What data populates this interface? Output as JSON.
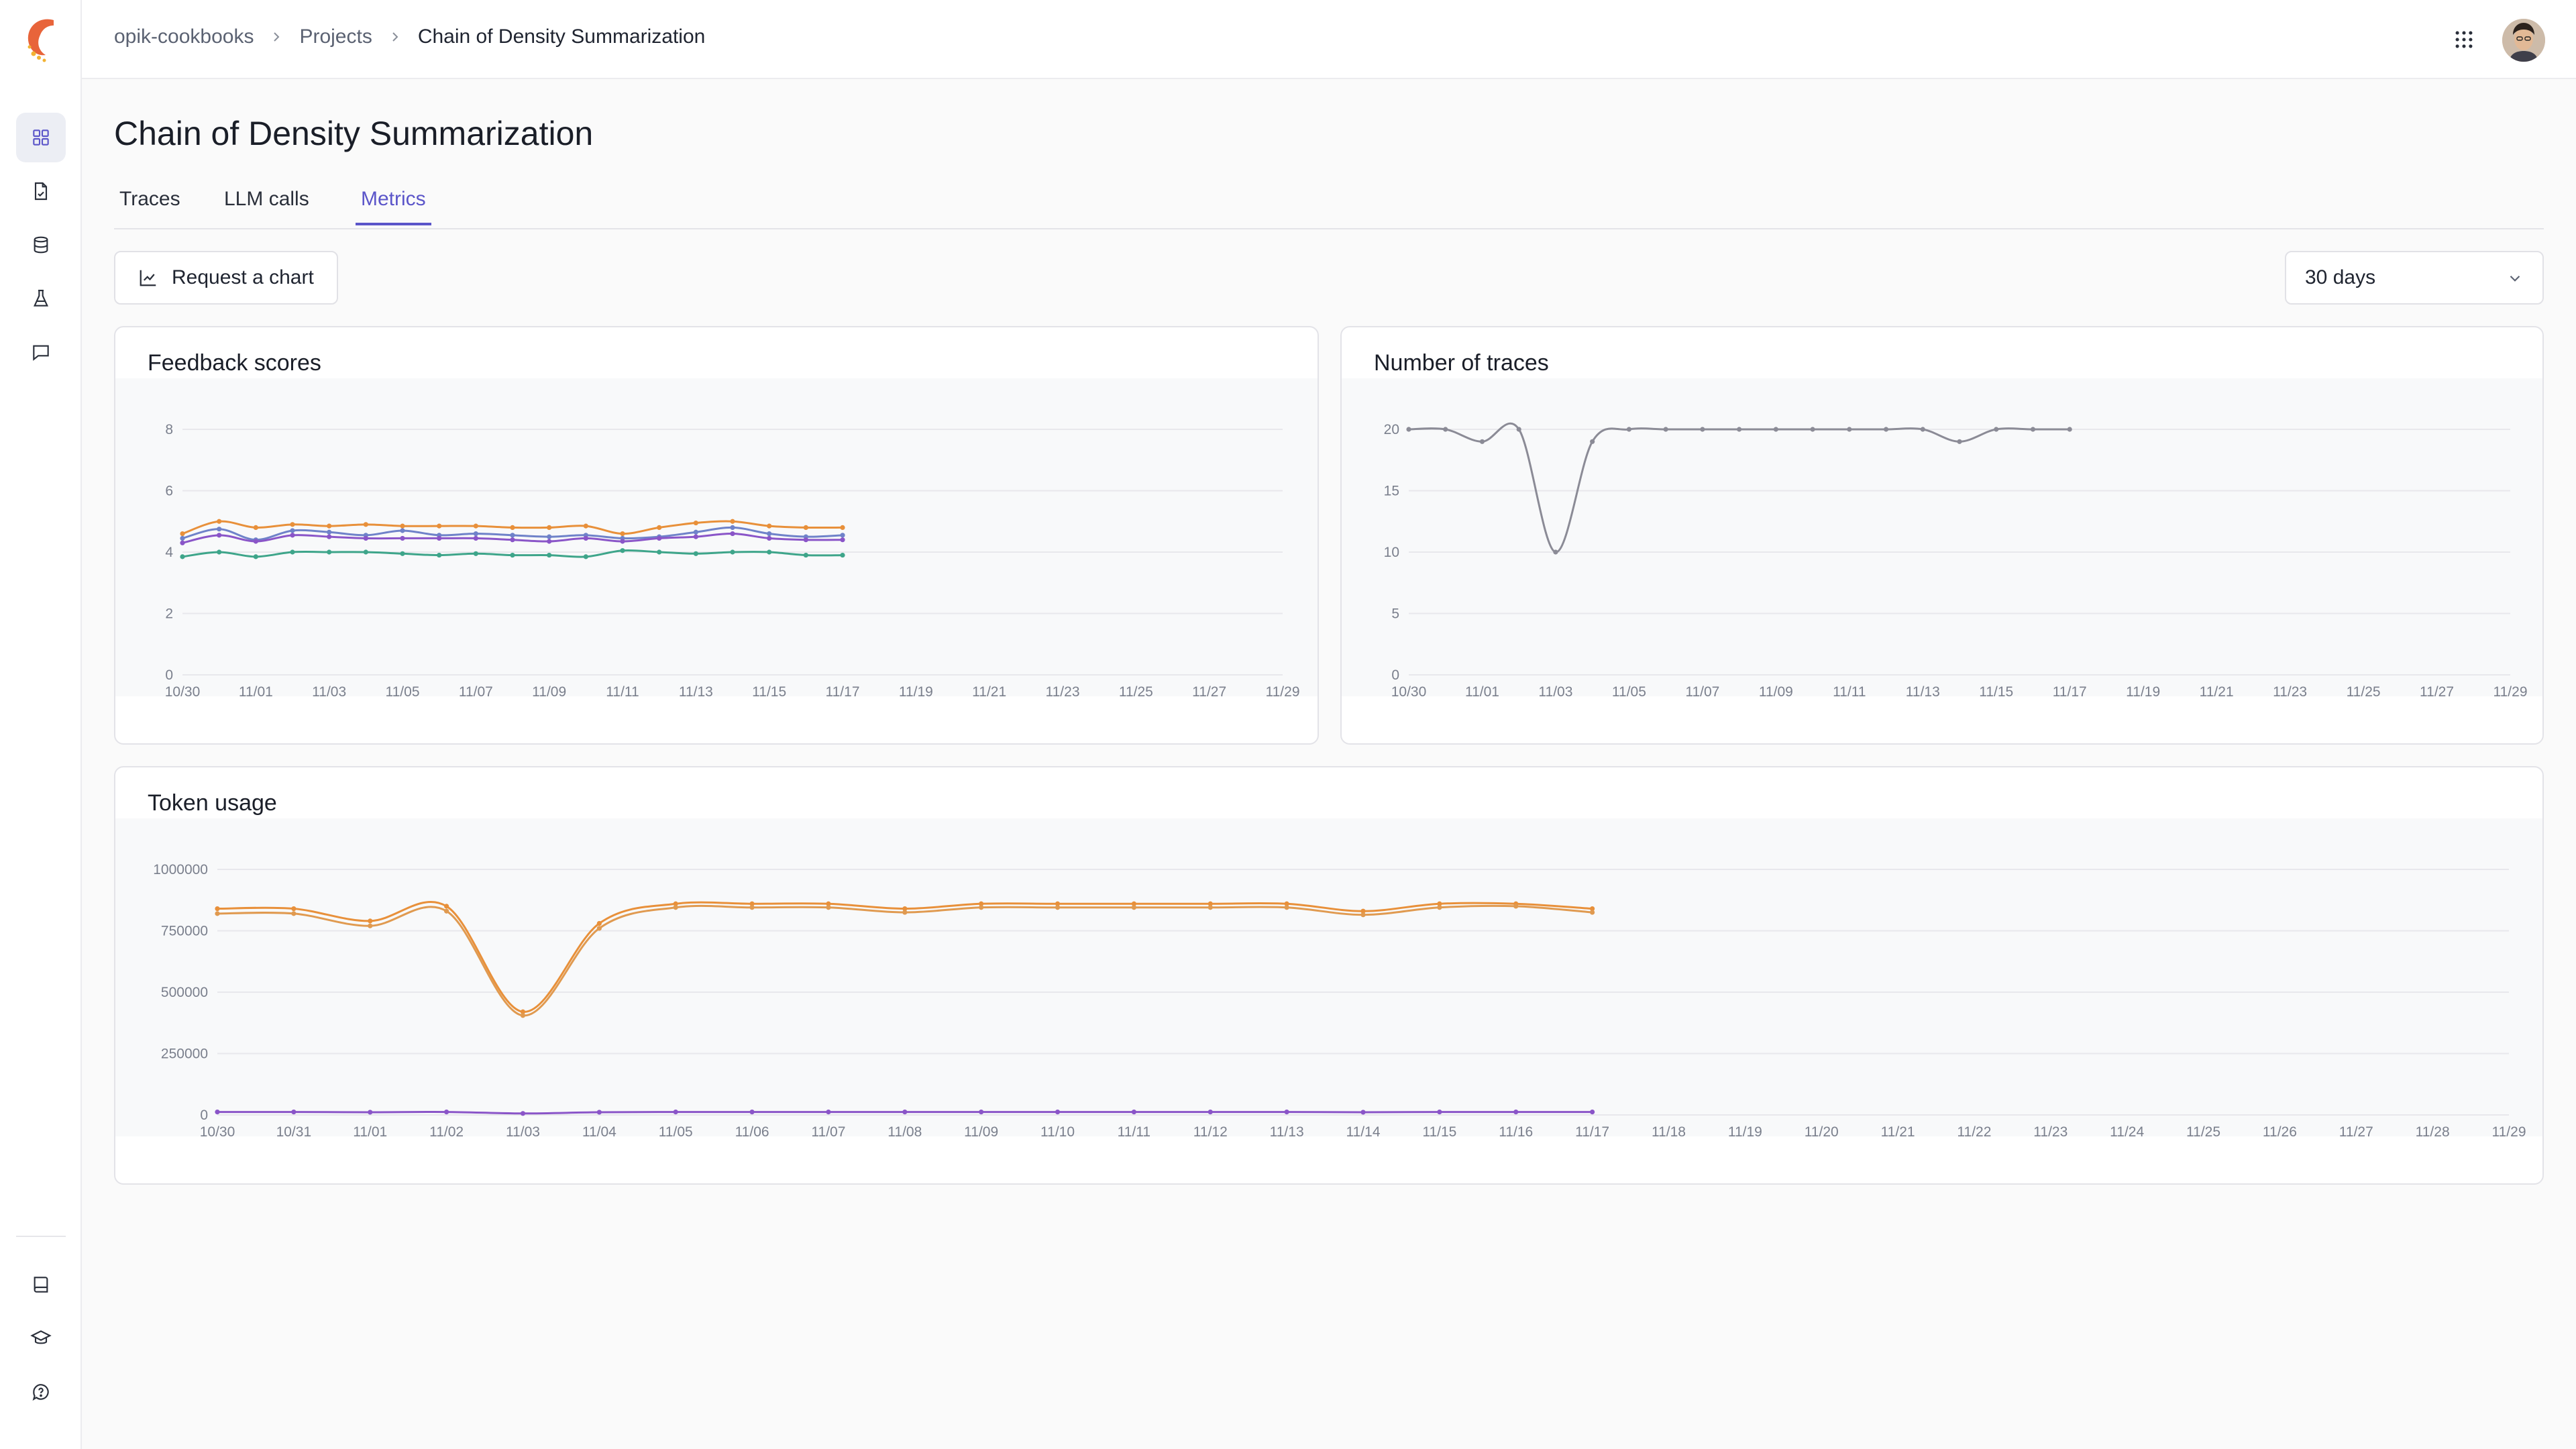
{
  "header": {
    "breadcrumbs": [
      "opik-cookbooks",
      "Projects",
      "Chain of Density Summarization"
    ]
  },
  "sidebar": {
    "top_items": [
      {
        "name": "dashboard-icon",
        "active": true
      },
      {
        "name": "traces-icon",
        "active": false
      },
      {
        "name": "datasets-icon",
        "active": false
      },
      {
        "name": "experiments-icon",
        "active": false
      },
      {
        "name": "feedback-icon",
        "active": false
      }
    ],
    "bottom_items": [
      {
        "name": "book-icon"
      },
      {
        "name": "graduation-cap-icon"
      },
      {
        "name": "help-icon"
      }
    ]
  },
  "page": {
    "title": "Chain of Density Summarization",
    "tabs": [
      {
        "label": "Traces",
        "active": false
      },
      {
        "label": "LLM calls",
        "active": false
      },
      {
        "label": "Metrics",
        "active": true
      }
    ],
    "request_chart_label": "Request a chart",
    "range_value": "30 days"
  },
  "colors": {
    "accent": "#5b55c9",
    "series_orange": "#e8903a",
    "series_purple": "#8a55c8",
    "series_blue": "#6f82c9",
    "series_green": "#3ea58a",
    "series_gray": "#8b8b96"
  },
  "chart_data": [
    {
      "type": "line",
      "title": "Feedback scores",
      "ylim": [
        0,
        8
      ],
      "yticks": [
        0,
        2,
        4,
        6,
        8
      ],
      "x_dates": [
        "10/30",
        "10/31",
        "11/01",
        "11/02",
        "11/03",
        "11/04",
        "11/05",
        "11/06",
        "11/07",
        "11/08",
        "11/09",
        "11/10",
        "11/11",
        "11/12",
        "11/13",
        "11/14",
        "11/15",
        "11/16",
        "11/17",
        "11/18",
        "11/19",
        "11/20",
        "11/21",
        "11/22",
        "11/23",
        "11/24",
        "11/25",
        "11/26",
        "11/27",
        "11/28",
        "11/29"
      ],
      "x_tick_labels": [
        "10/30",
        "11/01",
        "11/03",
        "11/05",
        "11/07",
        "11/09",
        "11/11",
        "11/13",
        "11/15",
        "11/17",
        "11/19",
        "11/21",
        "11/23",
        "11/25",
        "11/27",
        "11/29"
      ],
      "grid": true,
      "series": [
        {
          "color": "#e8903a",
          "values": [
            4.6,
            5.0,
            4.8,
            4.9,
            4.85,
            4.9,
            4.85,
            4.85,
            4.85,
            4.8,
            4.8,
            4.85,
            4.6,
            4.8,
            4.95,
            5.0,
            4.85,
            4.8,
            4.8
          ]
        },
        {
          "color": "#6f82c9",
          "values": [
            4.45,
            4.75,
            4.4,
            4.7,
            4.65,
            4.55,
            4.7,
            4.55,
            4.6,
            4.55,
            4.5,
            4.55,
            4.45,
            4.5,
            4.65,
            4.8,
            4.6,
            4.5,
            4.55
          ]
        },
        {
          "color": "#8a55c8",
          "values": [
            4.3,
            4.55,
            4.35,
            4.55,
            4.5,
            4.45,
            4.45,
            4.45,
            4.45,
            4.4,
            4.35,
            4.45,
            4.35,
            4.45,
            4.5,
            4.6,
            4.45,
            4.4,
            4.4
          ]
        },
        {
          "color": "#3ea58a",
          "values": [
            3.85,
            4.0,
            3.85,
            4.0,
            4.0,
            4.0,
            3.95,
            3.9,
            3.95,
            3.9,
            3.9,
            3.85,
            4.05,
            4.0,
            3.95,
            4.0,
            4.0,
            3.9,
            3.9
          ]
        }
      ]
    },
    {
      "type": "line",
      "title": "Number of traces",
      "ylim": [
        0,
        20
      ],
      "yticks": [
        0,
        5,
        10,
        15,
        20
      ],
      "x_dates": [
        "10/30",
        "10/31",
        "11/01",
        "11/02",
        "11/03",
        "11/04",
        "11/05",
        "11/06",
        "11/07",
        "11/08",
        "11/09",
        "11/10",
        "11/11",
        "11/12",
        "11/13",
        "11/14",
        "11/15",
        "11/16",
        "11/17",
        "11/18",
        "11/19",
        "11/20",
        "11/21",
        "11/22",
        "11/23",
        "11/24",
        "11/25",
        "11/26",
        "11/27",
        "11/28",
        "11/29"
      ],
      "x_tick_labels": [
        "10/30",
        "11/01",
        "11/03",
        "11/05",
        "11/07",
        "11/09",
        "11/11",
        "11/13",
        "11/15",
        "11/17",
        "11/19",
        "11/21",
        "11/23",
        "11/25",
        "11/27",
        "11/29"
      ],
      "grid": true,
      "series": [
        {
          "color": "#8b8b96",
          "values": [
            20,
            20,
            19,
            20,
            10,
            19,
            20,
            20,
            20,
            20,
            20,
            20,
            20,
            20,
            20,
            19,
            20,
            20,
            20
          ]
        }
      ]
    },
    {
      "type": "line",
      "title": "Token usage",
      "ylim": [
        0,
        1000000
      ],
      "yticks": [
        0,
        250000,
        500000,
        750000,
        1000000
      ],
      "x_dates": [
        "10/30",
        "10/31",
        "11/01",
        "11/02",
        "11/03",
        "11/04",
        "11/05",
        "11/06",
        "11/07",
        "11/08",
        "11/09",
        "11/10",
        "11/11",
        "11/12",
        "11/13",
        "11/14",
        "11/15",
        "11/16",
        "11/17",
        "11/18",
        "11/19",
        "11/20",
        "11/21",
        "11/22",
        "11/23",
        "11/24",
        "11/25",
        "11/26",
        "11/27",
        "11/28",
        "11/29"
      ],
      "x_tick_labels": [
        "10/30",
        "10/31",
        "11/01",
        "11/02",
        "11/03",
        "11/04",
        "11/05",
        "11/06",
        "11/07",
        "11/08",
        "11/09",
        "11/10",
        "11/11",
        "11/12",
        "11/13",
        "11/14",
        "11/15",
        "11/16",
        "11/17",
        "11/18",
        "11/19",
        "11/20",
        "11/21",
        "11/22",
        "11/23",
        "11/24",
        "11/25",
        "11/26",
        "11/27",
        "11/28",
        "11/29"
      ],
      "grid": true,
      "series": [
        {
          "color": "#e8903a",
          "values": [
            840000,
            840000,
            790000,
            850000,
            420000,
            780000,
            860000,
            860000,
            860000,
            840000,
            860000,
            860000,
            860000,
            860000,
            860000,
            830000,
            860000,
            860000,
            840000
          ]
        },
        {
          "color": "#e09a50",
          "values": [
            820000,
            820000,
            770000,
            830000,
            405000,
            760000,
            845000,
            845000,
            845000,
            825000,
            845000,
            845000,
            845000,
            845000,
            845000,
            815000,
            845000,
            850000,
            825000
          ]
        },
        {
          "color": "#8a55c8",
          "values": [
            12000,
            12000,
            11000,
            12000,
            6000,
            11000,
            12000,
            12000,
            12000,
            12000,
            12000,
            12000,
            12000,
            12000,
            12000,
            11000,
            12000,
            12000,
            12000
          ]
        }
      ]
    }
  ]
}
